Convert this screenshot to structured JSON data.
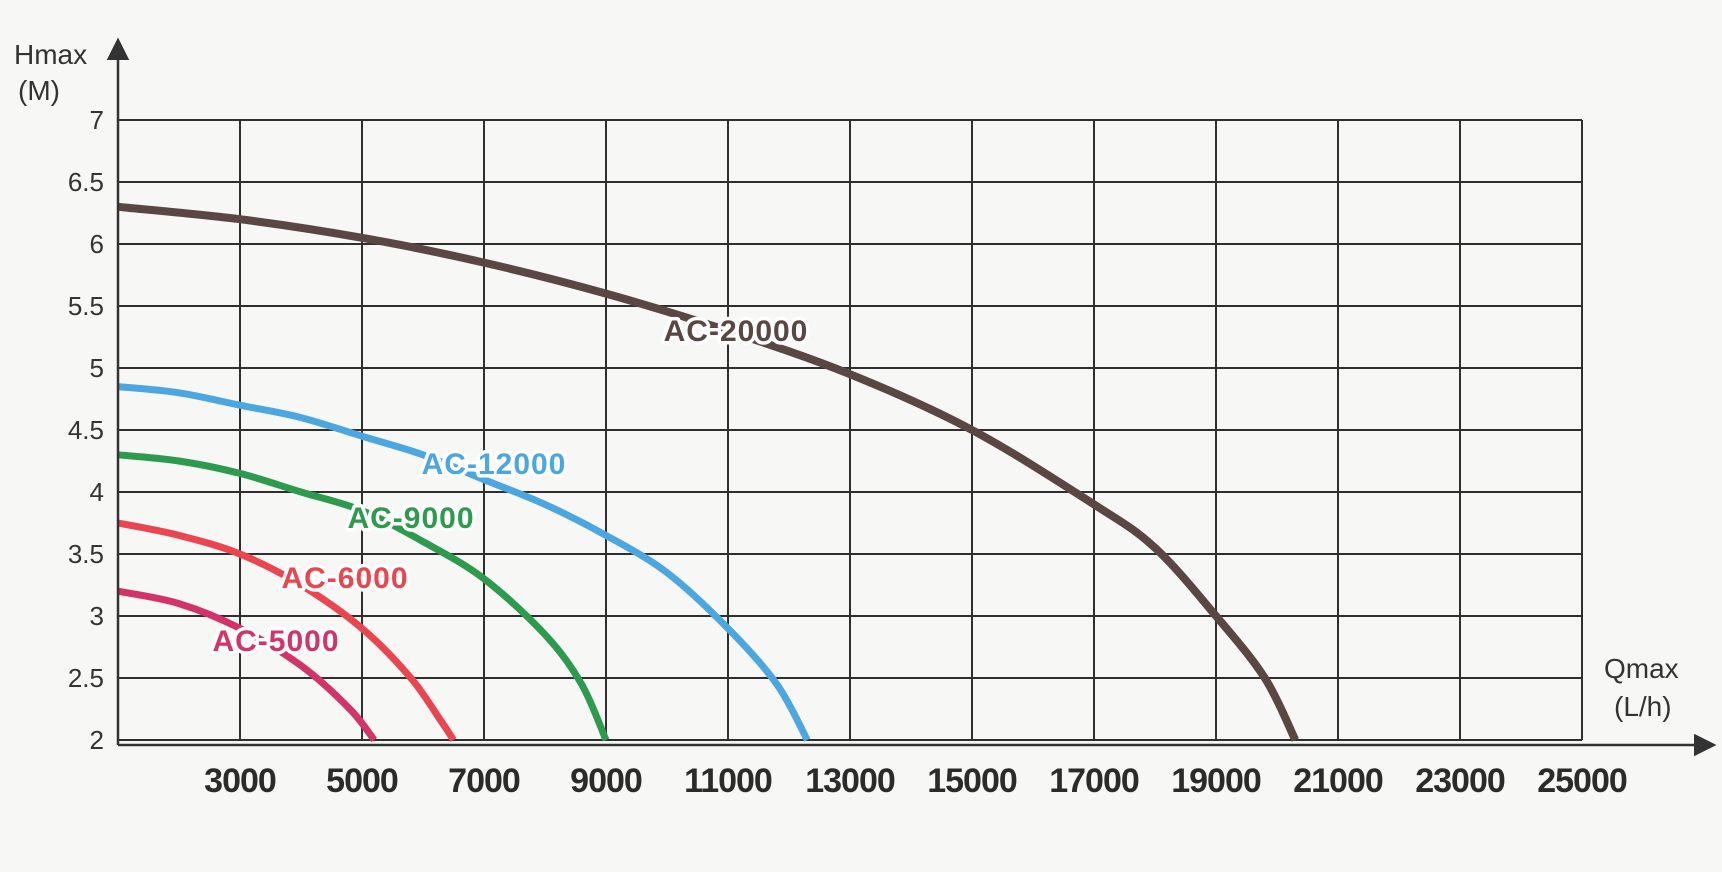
{
  "chart_data": {
    "type": "line",
    "title": "",
    "ylabel": "Hmax",
    "ylabel_unit": "(M)",
    "xlabel": "Qmax",
    "xlabel_unit": "(L/h)",
    "xlim": [
      1000,
      25000
    ],
    "ylim": [
      2,
      7
    ],
    "grid": true,
    "x_ticks": [
      3000,
      5000,
      7000,
      9000,
      11000,
      13000,
      15000,
      17000,
      19000,
      21000,
      23000,
      25000
    ],
    "y_ticks": [
      "2",
      "2.5",
      "3",
      "3.5",
      "4",
      "4.5",
      "5",
      "5.5",
      "6",
      "6.5",
      "7"
    ],
    "series": [
      {
        "name": "AC-5000",
        "color": "#d1336a",
        "points": [
          [
            1000,
            3.2
          ],
          [
            2000,
            3.1
          ],
          [
            3000,
            2.9
          ],
          [
            4000,
            2.6
          ],
          [
            4800,
            2.25
          ],
          [
            5200,
            2.0
          ]
        ]
      },
      {
        "name": "AC-6000",
        "color": "#ea4650",
        "points": [
          [
            1000,
            3.75
          ],
          [
            2000,
            3.65
          ],
          [
            3000,
            3.5
          ],
          [
            4000,
            3.25
          ],
          [
            5000,
            2.9
          ],
          [
            5800,
            2.5
          ],
          [
            6300,
            2.15
          ],
          [
            6500,
            2.0
          ]
        ]
      },
      {
        "name": "AC-9000",
        "color": "#2e9a4e",
        "points": [
          [
            1000,
            4.3
          ],
          [
            2000,
            4.25
          ],
          [
            3000,
            4.15
          ],
          [
            4000,
            4.0
          ],
          [
            5000,
            3.85
          ],
          [
            6000,
            3.6
          ],
          [
            7000,
            3.3
          ],
          [
            8000,
            2.85
          ],
          [
            8600,
            2.45
          ],
          [
            9000,
            2.0
          ]
        ]
      },
      {
        "name": "AC-12000",
        "color": "#4ca7e0",
        "points": [
          [
            1000,
            4.85
          ],
          [
            2000,
            4.8
          ],
          [
            3000,
            4.7
          ],
          [
            4000,
            4.6
          ],
          [
            5000,
            4.45
          ],
          [
            6000,
            4.3
          ],
          [
            7000,
            4.1
          ],
          [
            8000,
            3.9
          ],
          [
            9000,
            3.65
          ],
          [
            10000,
            3.35
          ],
          [
            11000,
            2.9
          ],
          [
            11800,
            2.45
          ],
          [
            12300,
            2.0
          ]
        ]
      },
      {
        "name": "AC-20000",
        "color": "#5a4744",
        "points": [
          [
            1000,
            6.3
          ],
          [
            3000,
            6.2
          ],
          [
            5000,
            6.05
          ],
          [
            7000,
            5.85
          ],
          [
            9000,
            5.6
          ],
          [
            11000,
            5.3
          ],
          [
            13000,
            4.95
          ],
          [
            15000,
            4.5
          ],
          [
            17000,
            3.9
          ],
          [
            18000,
            3.55
          ],
          [
            19000,
            3.0
          ],
          [
            19800,
            2.5
          ],
          [
            20300,
            2.0
          ]
        ]
      }
    ]
  }
}
